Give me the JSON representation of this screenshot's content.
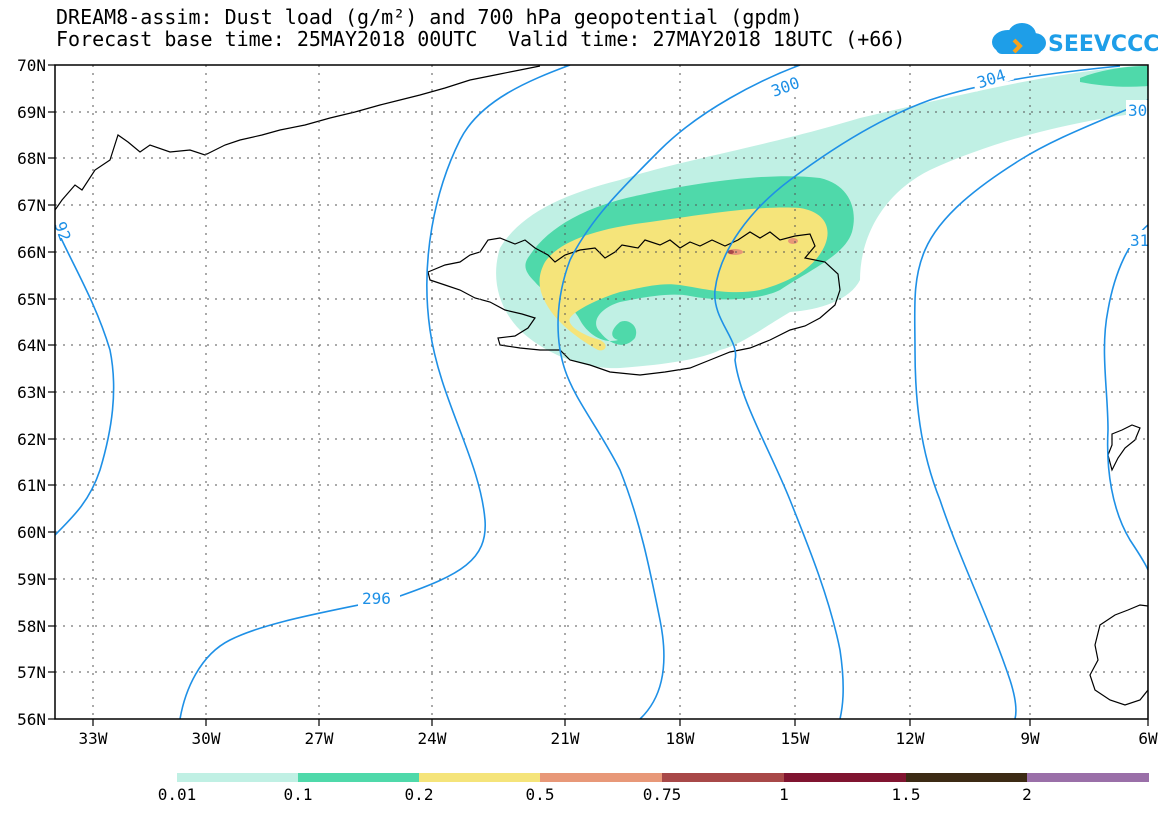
{
  "header": {
    "title": "DREAM8-assim: Dust load (g/m²) and 700 hPa geopotential (gpdm)",
    "forecast_base": "Forecast base time: 25MAY2018 00UTC",
    "valid_time": "Valid time: 27MAY2018 18UTC (+66)",
    "logo_text": "SEEVCCC"
  },
  "map": {
    "lat_labels": [
      "70N",
      "69N",
      "68N",
      "67N",
      "66N",
      "65N",
      "64N",
      "63N",
      "62N",
      "61N",
      "60N",
      "59N",
      "58N",
      "57N",
      "56N"
    ],
    "lon_labels": [
      "33W",
      "30W",
      "27W",
      "24W",
      "21W",
      "18W",
      "15W",
      "12W",
      "9W",
      "6W"
    ],
    "contour_labels": [
      "296",
      "300",
      "304",
      "30",
      "31",
      "92"
    ],
    "contour_color": "#1e90e6"
  },
  "colorbar": {
    "levels": [
      "0.01",
      "0.1",
      "0.2",
      "0.5",
      "0.75",
      "1",
      "1.5",
      "2"
    ],
    "colors": [
      "#c0f0e4",
      "#4fd9aa",
      "#f5e47a",
      "#e89878",
      "#a84848",
      "#801430",
      "#3c2a14",
      "#9a6fa8"
    ]
  }
}
